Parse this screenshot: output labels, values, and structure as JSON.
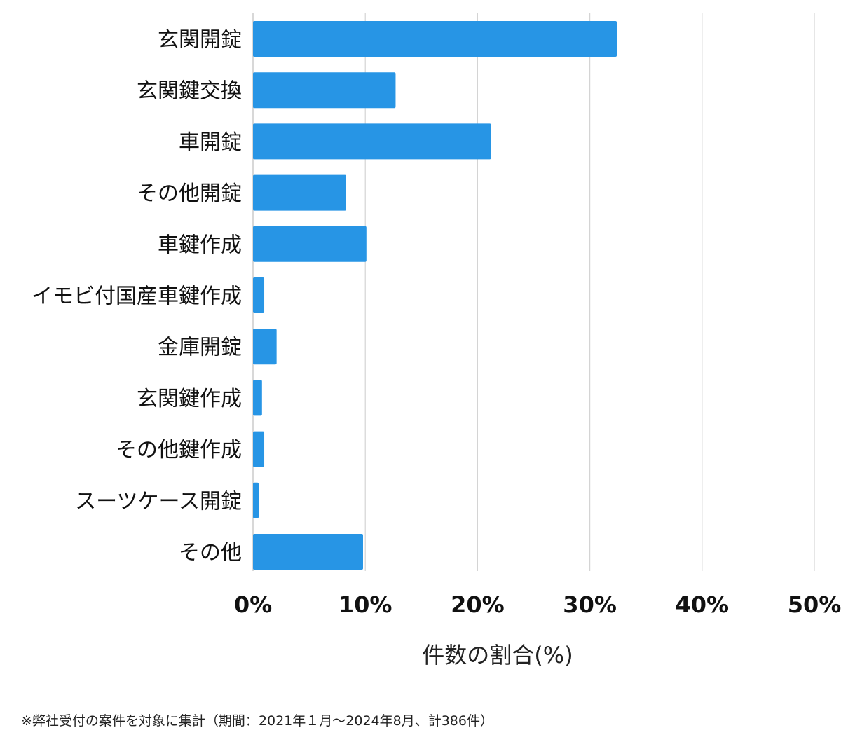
{
  "chart_data": {
    "type": "bar",
    "orientation": "horizontal",
    "categories": [
      "玄関開錠",
      "玄関鍵交換",
      "車開錠",
      "その他開錠",
      "車鍵作成",
      "イモビ付国産車鍵作成",
      "金庫開錠",
      "玄関鍵作成",
      "その他鍵作成",
      "スーツケース開錠",
      "その他"
    ],
    "values": [
      32.4,
      12.7,
      21.2,
      8.3,
      10.1,
      1.0,
      2.1,
      0.8,
      1.0,
      0.5,
      9.8
    ],
    "xlim": [
      0,
      50
    ],
    "x_ticks": [
      "0%",
      "10%",
      "20%",
      "30%",
      "40%",
      "50%"
    ],
    "xlabel": "件数の割合(%)",
    "grid": "vertical",
    "bar_color": "#2795e5"
  },
  "footnote": "※弊社受付の案件を対象に集計（期間：2021年１月〜2024年8月、計386件）"
}
